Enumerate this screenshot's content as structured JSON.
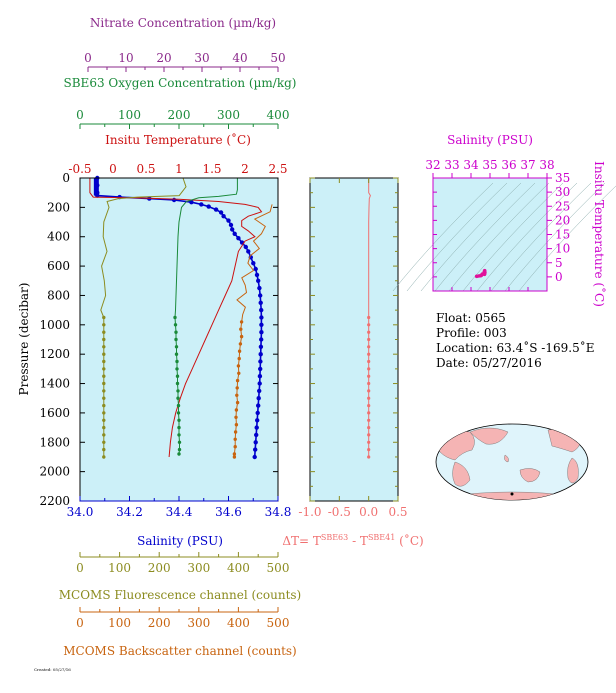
{
  "colors": {
    "nitrate": "#8b2a8b",
    "oxygen": "#1a8a3a",
    "temperature": "#cc1111",
    "salinity": "#0000cc",
    "fluorescence": "#8c8c20",
    "backscatter": "#c86410",
    "delta_t": "#f07070",
    "ts_axes": "#cc00cc",
    "panel_bg": "#ccf0f8",
    "map_land": "#f5b4b4",
    "map_ocean": "#dff4fb"
  },
  "axes": {
    "nitrate": {
      "title": "Nitrate Concentration (µm/kg)",
      "ticks": [
        "0",
        "10",
        "20",
        "30",
        "40",
        "50"
      ]
    },
    "oxygen": {
      "title": "SBE63 Oxygen Concentration (µm/kg)",
      "ticks": [
        "0",
        "100",
        "200",
        "300",
        "400"
      ]
    },
    "temperature": {
      "title": "Insitu Temperature (˚C)",
      "ticks": [
        "-0.5",
        "0",
        "0.5",
        "1",
        "1.5",
        "2",
        "2.5"
      ]
    },
    "salinity": {
      "title": "Salinity (PSU)",
      "ticks": [
        "34.0",
        "34.2",
        "34.4",
        "34.6",
        "34.8"
      ]
    },
    "pressure": {
      "title": "Pressure (decibar)",
      "ticks": [
        "0",
        "200",
        "400",
        "600",
        "800",
        "1000",
        "1200",
        "1400",
        "1600",
        "1800",
        "2000",
        "2200"
      ]
    },
    "fluorescence": {
      "title": "MCOMS Fluorescence channel (counts)",
      "ticks": [
        "0",
        "100",
        "200",
        "300",
        "400",
        "500"
      ]
    },
    "backscatter": {
      "title": "MCOMS Backscatter channel (counts)",
      "ticks": [
        "0",
        "100",
        "200",
        "300",
        "400",
        "500"
      ]
    },
    "delta_t": {
      "title_main": "ΔT= T",
      "sup1": "SBE63",
      "title_mid": " - T",
      "sup2": "SBE41",
      "title_end": " (˚C)",
      "ticks": [
        "-1.0",
        "-0.5",
        "0.0",
        "0.5"
      ]
    },
    "ts_salinity": {
      "title": "Salinity (PSU)",
      "ticks": [
        "32",
        "33",
        "34",
        "35",
        "36",
        "37",
        "38"
      ]
    },
    "ts_temperature": {
      "title": "Insitu Temperature (˚C)",
      "ticks": [
        "0",
        "5",
        "10",
        "15",
        "20",
        "25",
        "30",
        "35"
      ]
    }
  },
  "info": {
    "float": "Float:  0565",
    "profile": "Profile:  003",
    "location": "Location:  63.4˚S  -169.5˚E",
    "date": "Date:  05/27/2016"
  },
  "footer": "Created: 05/27/16",
  "chart_data": [
    {
      "type": "line",
      "panel": "main",
      "ylabel": "Pressure (decibar)",
      "ylim": [
        2200,
        0
      ],
      "series": [
        {
          "name": "Salinity (PSU)",
          "xlim": [
            34.0,
            34.8
          ],
          "dots": true,
          "points": [
            [
              34.07,
              0
            ],
            [
              34.07,
              50
            ],
            [
              34.07,
              100
            ],
            [
              34.07,
              120
            ],
            [
              34.16,
              130
            ],
            [
              34.28,
              140
            ],
            [
              34.38,
              150
            ],
            [
              34.45,
              165
            ],
            [
              34.49,
              180
            ],
            [
              34.52,
              195
            ],
            [
              34.55,
              215
            ],
            [
              34.57,
              235
            ],
            [
              34.58,
              260
            ],
            [
              34.6,
              290
            ],
            [
              34.61,
              320
            ],
            [
              34.615,
              350
            ],
            [
              34.625,
              380
            ],
            [
              34.64,
              410
            ],
            [
              34.655,
              440
            ],
            [
              34.67,
              470
            ],
            [
              34.68,
              500
            ],
            [
              34.69,
              540
            ],
            [
              34.7,
              580
            ],
            [
              34.71,
              620
            ],
            [
              34.715,
              660
            ],
            [
              34.72,
              700
            ],
            [
              34.725,
              750
            ],
            [
              34.728,
              800
            ],
            [
              34.73,
              850
            ],
            [
              34.732,
              900
            ],
            [
              34.733,
              950
            ],
            [
              34.733,
              1000
            ],
            [
              34.733,
              1050
            ],
            [
              34.732,
              1100
            ],
            [
              34.731,
              1150
            ],
            [
              34.73,
              1200
            ],
            [
              34.729,
              1250
            ],
            [
              34.728,
              1300
            ],
            [
              34.727,
              1350
            ],
            [
              34.726,
              1400
            ],
            [
              34.724,
              1450
            ],
            [
              34.722,
              1500
            ],
            [
              34.72,
              1550
            ],
            [
              34.718,
              1600
            ],
            [
              34.716,
              1650
            ],
            [
              34.714,
              1700
            ],
            [
              34.712,
              1750
            ],
            [
              34.71,
              1800
            ],
            [
              34.708,
              1850
            ],
            [
              34.706,
              1900
            ]
          ]
        },
        {
          "name": "Insitu Temperature (˚C)",
          "xlim": [
            -0.5,
            2.5
          ],
          "dots": false,
          "points": [
            [
              -0.35,
              0
            ],
            [
              -0.35,
              100
            ],
            [
              -0.3,
              130
            ],
            [
              0.3,
              135
            ],
            [
              1.0,
              145
            ],
            [
              1.6,
              160
            ],
            [
              2.0,
              180
            ],
            [
              2.2,
              200
            ],
            [
              2.25,
              230
            ],
            [
              2.05,
              260
            ],
            [
              1.95,
              290
            ],
            [
              1.95,
              330
            ],
            [
              2.05,
              360
            ],
            [
              2.15,
              400
            ],
            [
              2.0,
              430
            ],
            [
              1.9,
              500
            ],
            [
              1.85,
              600
            ],
            [
              1.8,
              700
            ],
            [
              1.7,
              800
            ],
            [
              1.6,
              900
            ],
            [
              1.5,
              1000
            ],
            [
              1.4,
              1100
            ],
            [
              1.3,
              1200
            ],
            [
              1.2,
              1300
            ],
            [
              1.1,
              1400
            ],
            [
              1.02,
              1500
            ],
            [
              0.95,
              1600
            ],
            [
              0.9,
              1700
            ],
            [
              0.87,
              1800
            ],
            [
              0.85,
              1900
            ]
          ]
        },
        {
          "name": "SBE63 Oxygen Concentration (µm/kg)",
          "xlim": [
            0,
            400
          ],
          "dots": true,
          "dot_min_p": 950,
          "points": [
            [
              318,
              0
            ],
            [
              318,
              80
            ],
            [
              316,
              110
            ],
            [
              280,
              125
            ],
            [
              240,
              135
            ],
            [
              215,
              160
            ],
            [
              205,
              200
            ],
            [
              200,
              300
            ],
            [
              198,
              400
            ],
            [
              197,
              500
            ],
            [
              196,
              600
            ],
            [
              195,
              700
            ],
            [
              194,
              800
            ],
            [
              193,
              900
            ],
            [
              192,
              950
            ],
            [
              193,
              1000
            ],
            [
              194,
              1050
            ],
            [
              194,
              1100
            ],
            [
              195,
              1150
            ],
            [
              195,
              1200
            ],
            [
              196,
              1250
            ],
            [
              196,
              1300
            ],
            [
              197,
              1350
            ],
            [
              197,
              1400
            ],
            [
              198,
              1450
            ],
            [
              198,
              1500
            ],
            [
              199,
              1550
            ],
            [
              199,
              1600
            ],
            [
              200,
              1650
            ],
            [
              200,
              1700
            ],
            [
              200,
              1750
            ],
            [
              201,
              1800
            ],
            [
              201,
              1850
            ],
            [
              200,
              1880
            ]
          ]
        },
        {
          "name": "MCOMS Fluorescence channel (counts)",
          "xlim": [
            0,
            500
          ],
          "dots": true,
          "dot_min_p": 950,
          "wiggle": 10,
          "points": [
            [
              260,
              0
            ],
            [
              262,
              60
            ],
            [
              258,
              120
            ],
            [
              140,
              130
            ],
            [
              95,
              140
            ],
            [
              75,
              160
            ],
            [
              66,
              200
            ],
            [
              63,
              300
            ],
            [
              62,
              400
            ],
            [
              61,
              500
            ],
            [
              61,
              600
            ],
            [
              60,
              700
            ],
            [
              60,
              800
            ],
            [
              60,
              900
            ],
            [
              60,
              950
            ],
            [
              60,
              1000
            ],
            [
              60,
              1050
            ],
            [
              60,
              1100
            ],
            [
              60,
              1150
            ],
            [
              60,
              1200
            ],
            [
              60,
              1250
            ],
            [
              60,
              1300
            ],
            [
              60,
              1350
            ],
            [
              60,
              1400
            ],
            [
              60,
              1450
            ],
            [
              60,
              1500
            ],
            [
              60,
              1550
            ],
            [
              60,
              1600
            ],
            [
              60,
              1650
            ],
            [
              60,
              1700
            ],
            [
              60,
              1750
            ],
            [
              60,
              1800
            ],
            [
              60,
              1850
            ],
            [
              60,
              1900
            ]
          ]
        },
        {
          "name": "MCOMS Backscatter channel (counts)",
          "xlim": [
            0,
            500
          ],
          "dots": true,
          "dot_min_p": 950,
          "wiggle": 18,
          "points": [
            [
              485,
              180
            ],
            [
              470,
              230
            ],
            [
              455,
              280
            ],
            [
              460,
              330
            ],
            [
              455,
              380
            ],
            [
              450,
              430
            ],
            [
              440,
              480
            ],
            [
              435,
              530
            ],
            [
              430,
              580
            ],
            [
              425,
              630
            ],
            [
              420,
              680
            ],
            [
              415,
              730
            ],
            [
              412,
              780
            ],
            [
              410,
              830
            ],
            [
              408,
              880
            ],
            [
              410,
              930
            ],
            [
              408,
              980
            ],
            [
              406,
              1030
            ],
            [
              408,
              1080
            ],
            [
              405,
              1130
            ],
            [
              403,
              1180
            ],
            [
              402,
              1230
            ],
            [
              400,
              1280
            ],
            [
              401,
              1330
            ],
            [
              398,
              1380
            ],
            [
              397,
              1430
            ],
            [
              396,
              1480
            ],
            [
              398,
              1530
            ],
            [
              395,
              1580
            ],
            [
              394,
              1630
            ],
            [
              395,
              1680
            ],
            [
              393,
              1730
            ],
            [
              392,
              1780
            ],
            [
              392,
              1830
            ],
            [
              390,
              1880
            ],
            [
              390,
              1900
            ]
          ]
        }
      ]
    },
    {
      "type": "line",
      "panel": "delta_t",
      "xlim": [
        -1.0,
        0.5
      ],
      "ylim": [
        2200,
        0
      ],
      "series": [
        {
          "name": "ΔT",
          "dots": true,
          "dot_min_p": 950,
          "points": [
            [
              0.0,
              0
            ],
            [
              0.0,
              100
            ],
            [
              0.03,
              120
            ],
            [
              0.01,
              140
            ],
            [
              0.005,
              200
            ],
            [
              0.0,
              300
            ],
            [
              0.0,
              500
            ],
            [
              0.0,
              700
            ],
            [
              0.0,
              900
            ],
            [
              0.0,
              950
            ],
            [
              0.0,
              1000
            ],
            [
              0.0,
              1050
            ],
            [
              0.0,
              1100
            ],
            [
              0.0,
              1150
            ],
            [
              0.0,
              1200
            ],
            [
              0.0,
              1250
            ],
            [
              0.0,
              1300
            ],
            [
              0.0,
              1350
            ],
            [
              0.0,
              1400
            ],
            [
              0.0,
              1450
            ],
            [
              0.0,
              1500
            ],
            [
              0.0,
              1550
            ],
            [
              0.0,
              1600
            ],
            [
              0.0,
              1650
            ],
            [
              0.0,
              1700
            ],
            [
              0.0,
              1750
            ],
            [
              0.0,
              1800
            ],
            [
              0.0,
              1850
            ],
            [
              0.0,
              1900
            ]
          ]
        }
      ]
    },
    {
      "type": "scatter",
      "panel": "ts",
      "xlabel": "Salinity (PSU)",
      "ylabel": "Insitu Temperature (˚C)",
      "xlim": [
        32,
        38
      ],
      "ylim": [
        -5,
        35
      ],
      "points": [
        [
          34.3,
          0.2
        ],
        [
          34.5,
          0.4
        ],
        [
          34.6,
          1.0
        ],
        [
          34.7,
          1.8
        ],
        [
          34.72,
          2.2
        ],
        [
          34.73,
          1.6
        ],
        [
          34.72,
          1.2
        ],
        [
          34.71,
          0.9
        ],
        [
          34.55,
          0.6
        ],
        [
          34.4,
          0.3
        ]
      ]
    }
  ]
}
